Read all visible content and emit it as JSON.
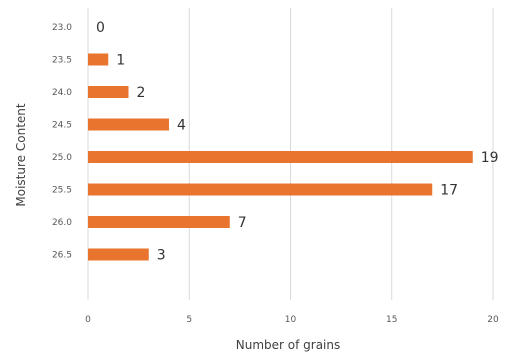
{
  "chart_data": {
    "type": "bar",
    "orientation": "horizontal",
    "categories": [
      "23.0",
      "23.5",
      "24.0",
      "24.5",
      "25.0",
      "25.5",
      "26.0",
      "26.5"
    ],
    "values": [
      0,
      1,
      2,
      4,
      19,
      17,
      7,
      3
    ],
    "xlabel": "Number of grains",
    "ylabel": "Moisture Content",
    "xlim": [
      0,
      20
    ],
    "xticks": [
      "0",
      "5",
      "10",
      "15",
      "20"
    ],
    "grid": true,
    "bar_color": "#E8742E",
    "data_labels": true
  }
}
